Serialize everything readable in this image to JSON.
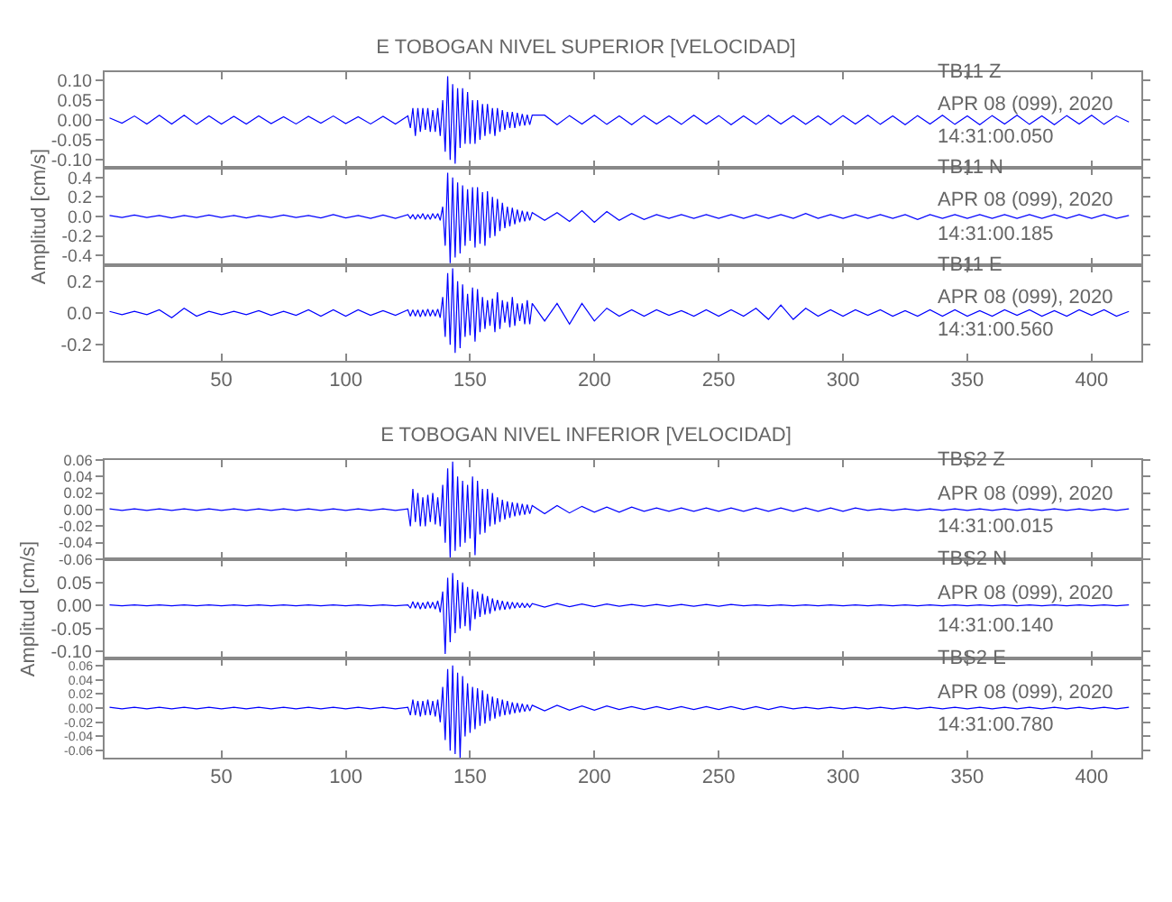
{
  "chart_data": [
    {
      "type": "line",
      "title": "E TOBOGAN NIVEL SUPERIOR [VELOCIDAD]",
      "tick_labels": "y",
      "xlim": [
        3,
        420
      ],
      "xticks": [
        50,
        100,
        150,
        200,
        250,
        300,
        350,
        400
      ],
      "ylim": [
        -0.12,
        0.12
      ],
      "yticks": [
        {
          "value": -0.1,
          "label": "-0.10"
        },
        {
          "value": -0.05,
          "label": "-0.05"
        },
        {
          "value": 0,
          "label": "0.00"
        },
        {
          "value": 0.05,
          "label": "0.05"
        },
        {
          "value": 0.1,
          "label": "0.10"
        }
      ],
      "annotations": [
        "TB11 Z",
        "APR 08 (099), 2020",
        "14:31:00.050"
      ],
      "x": [
        5,
        10,
        15,
        20,
        25,
        30,
        35,
        40,
        45,
        50,
        55,
        60,
        65,
        70,
        75,
        80,
        85,
        90,
        95,
        100,
        105,
        110,
        115,
        120,
        125,
        126,
        127,
        128,
        129,
        130,
        131,
        132,
        133,
        134,
        135,
        136,
        137,
        138,
        139,
        140,
        141,
        142,
        143,
        144,
        145,
        146,
        147,
        148,
        149,
        150,
        151,
        152,
        153,
        154,
        155,
        156,
        157,
        158,
        159,
        160,
        161,
        162,
        163,
        164,
        165,
        166,
        167,
        168,
        169,
        170,
        171,
        172,
        173,
        174,
        175,
        180,
        185,
        190,
        195,
        200,
        205,
        210,
        215,
        220,
        225,
        230,
        235,
        240,
        245,
        250,
        255,
        260,
        265,
        270,
        275,
        280,
        285,
        290,
        295,
        300,
        305,
        310,
        315,
        320,
        325,
        330,
        335,
        340,
        345,
        350,
        355,
        360,
        365,
        370,
        375,
        380,
        385,
        390,
        395,
        400,
        405,
        410,
        415
      ],
      "series": [
        {
          "color": "#0000ff",
          "values": [
            0.005,
            -0.008,
            0.01,
            -0.01,
            0.012,
            -0.01,
            0.012,
            -0.011,
            0.01,
            -0.01,
            0.009,
            -0.01,
            0.01,
            -0.009,
            0.008,
            -0.01,
            0.009,
            -0.008,
            0.01,
            -0.009,
            0.008,
            -0.01,
            0.009,
            -0.01,
            0.01,
            -0.02,
            0.03,
            -0.04,
            0.03,
            -0.03,
            0.03,
            -0.025,
            0.03,
            -0.03,
            0.025,
            -0.03,
            0.03,
            -0.04,
            0.05,
            -0.08,
            0.11,
            -0.1,
            0.09,
            -0.11,
            0.08,
            -0.07,
            0.08,
            -0.06,
            0.07,
            -0.06,
            0.05,
            -0.06,
            0.05,
            -0.05,
            0.04,
            -0.04,
            0.04,
            -0.035,
            0.03,
            -0.04,
            0.03,
            -0.03,
            0.025,
            -0.025,
            0.02,
            -0.02,
            0.02,
            -0.02,
            0.018,
            -0.015,
            0.015,
            -0.014,
            0.013,
            -0.012,
            0.012,
            0.012,
            -0.012,
            0.011,
            -0.01,
            0.012,
            -0.011,
            0.01,
            -0.012,
            0.011,
            -0.01,
            0.01,
            -0.011,
            0.012,
            -0.01,
            0.011,
            -0.012,
            0.01,
            -0.011,
            0.012,
            -0.01,
            0.011,
            -0.011,
            0.01,
            -0.012,
            0.011,
            -0.01,
            0.012,
            -0.011,
            0.01,
            -0.012,
            0.011,
            -0.01,
            0.012,
            -0.011,
            0.01,
            -0.012,
            0.011,
            -0.01,
            0.012,
            -0.011,
            0.01,
            -0.012,
            0.011,
            -0.01,
            0.012,
            -0.011,
            0.01,
            -0.005
          ]
        }
      ]
    },
    {
      "type": "line",
      "ylabel": "Amplitud [cm/s]",
      "tick_labels": "y",
      "xlim": [
        3,
        420
      ],
      "xticks": [
        50,
        100,
        150,
        200,
        250,
        300,
        350,
        400
      ],
      "ylim": [
        -0.5,
        0.5
      ],
      "yticks": [
        {
          "value": -0.4,
          "label": "-0.4"
        },
        {
          "value": -0.2,
          "label": "-0.2"
        },
        {
          "value": 0,
          "label": "0.0"
        },
        {
          "value": 0.2,
          "label": "0.2"
        },
        {
          "value": 0.4,
          "label": "0.4"
        }
      ],
      "annotations": [
        "TB11 N",
        "APR 08 (099), 2020",
        "14:31:00.185"
      ],
      "x": [
        5,
        10,
        15,
        20,
        25,
        30,
        35,
        40,
        45,
        50,
        55,
        60,
        65,
        70,
        75,
        80,
        85,
        90,
        95,
        100,
        105,
        110,
        115,
        120,
        125,
        126,
        127,
        128,
        129,
        130,
        131,
        132,
        133,
        134,
        135,
        136,
        137,
        138,
        139,
        140,
        141,
        142,
        143,
        144,
        145,
        146,
        147,
        148,
        149,
        150,
        151,
        152,
        153,
        154,
        155,
        156,
        157,
        158,
        159,
        160,
        161,
        162,
        163,
        164,
        165,
        166,
        167,
        168,
        169,
        170,
        171,
        172,
        173,
        174,
        175,
        180,
        185,
        190,
        195,
        200,
        205,
        210,
        215,
        220,
        225,
        230,
        235,
        240,
        245,
        250,
        255,
        260,
        265,
        270,
        275,
        280,
        285,
        290,
        295,
        300,
        305,
        310,
        315,
        320,
        325,
        330,
        335,
        340,
        345,
        350,
        355,
        360,
        365,
        370,
        375,
        380,
        385,
        390,
        395,
        400,
        405,
        410,
        415
      ],
      "series": [
        {
          "color": "#0000ff",
          "values": [
            0.01,
            -0.01,
            0.015,
            -0.01,
            0.01,
            -0.015,
            0.01,
            -0.01,
            0.015,
            -0.01,
            0.01,
            -0.015,
            0.01,
            -0.01,
            0.015,
            -0.01,
            0.01,
            -0.015,
            0.02,
            -0.015,
            0.01,
            -0.02,
            0.015,
            -0.02,
            0.02,
            -0.02,
            0.02,
            -0.03,
            0.02,
            -0.02,
            0.03,
            -0.03,
            0.02,
            -0.03,
            0.03,
            -0.02,
            0.03,
            -0.04,
            0.1,
            -0.3,
            0.45,
            -0.48,
            0.4,
            -0.42,
            0.35,
            -0.38,
            0.32,
            -0.3,
            0.28,
            -0.25,
            0.3,
            -0.32,
            0.3,
            -0.28,
            0.25,
            -0.3,
            0.26,
            -0.22,
            0.2,
            -0.2,
            0.18,
            -0.15,
            0.14,
            -0.12,
            0.1,
            -0.1,
            0.09,
            -0.08,
            0.07,
            -0.06,
            0.06,
            -0.05,
            0.05,
            -0.04,
            0.04,
            -0.04,
            0.04,
            -0.05,
            0.06,
            -0.06,
            0.05,
            -0.04,
            0.03,
            -0.03,
            0.02,
            -0.02,
            0.02,
            -0.02,
            0.02,
            -0.02,
            0.02,
            -0.02,
            0.02,
            -0.02,
            0.02,
            -0.02,
            0.03,
            -0.02,
            0.02,
            -0.02,
            0.02,
            -0.02,
            0.02,
            -0.02,
            0.02,
            -0.03,
            0.02,
            -0.02,
            0.02,
            -0.02,
            0.02,
            -0.02,
            0.02,
            -0.02,
            0.02,
            -0.02,
            0.02,
            -0.02,
            0.02,
            -0.02,
            0.02,
            -0.02,
            0.01
          ]
        }
      ]
    },
    {
      "type": "line",
      "xlim": [
        3,
        420
      ],
      "xticks": [
        50,
        100,
        150,
        200,
        250,
        300,
        350,
        400
      ],
      "ylim": [
        -0.3,
        0.3
      ],
      "yticks": [
        {
          "value": -0.2,
          "label": "-0.2"
        },
        {
          "value": 0,
          "label": "0.0"
        },
        {
          "value": 0.2,
          "label": "0.2"
        }
      ],
      "annotations": [
        "TB11 E",
        "APR 08 (099), 2020",
        "14:31:00.560"
      ],
      "x": [
        5,
        10,
        15,
        20,
        25,
        30,
        35,
        40,
        45,
        50,
        55,
        60,
        65,
        70,
        75,
        80,
        85,
        90,
        95,
        100,
        105,
        110,
        115,
        120,
        125,
        126,
        127,
        128,
        129,
        130,
        131,
        132,
        133,
        134,
        135,
        136,
        137,
        138,
        139,
        140,
        141,
        142,
        143,
        144,
        145,
        146,
        147,
        148,
        149,
        150,
        151,
        152,
        153,
        154,
        155,
        156,
        157,
        158,
        159,
        160,
        161,
        162,
        163,
        164,
        165,
        166,
        167,
        168,
        169,
        170,
        171,
        172,
        173,
        174,
        175,
        180,
        185,
        190,
        195,
        200,
        205,
        210,
        215,
        220,
        225,
        230,
        235,
        240,
        245,
        250,
        255,
        260,
        265,
        270,
        275,
        280,
        285,
        290,
        295,
        300,
        305,
        310,
        315,
        320,
        325,
        330,
        335,
        340,
        345,
        350,
        355,
        360,
        365,
        370,
        375,
        380,
        385,
        390,
        395,
        400,
        405,
        410,
        415
      ],
      "series": [
        {
          "color": "#0000ff",
          "values": [
            0.01,
            -0.01,
            0.01,
            -0.01,
            0.02,
            -0.03,
            0.03,
            -0.02,
            0.01,
            -0.01,
            0.01,
            -0.01,
            0.015,
            -0.015,
            0.01,
            -0.015,
            0.02,
            -0.02,
            0.02,
            -0.02,
            0.02,
            -0.015,
            0.015,
            -0.015,
            0.02,
            -0.02,
            0.02,
            -0.02,
            0.02,
            -0.025,
            0.02,
            -0.02,
            0.025,
            -0.02,
            0.02,
            -0.02,
            0.025,
            -0.03,
            0.1,
            -0.15,
            0.25,
            -0.2,
            0.28,
            -0.25,
            0.2,
            -0.22,
            0.18,
            -0.15,
            0.12,
            -0.14,
            0.16,
            -0.18,
            0.15,
            -0.12,
            0.1,
            -0.1,
            0.08,
            -0.08,
            0.09,
            -0.12,
            0.13,
            -0.1,
            0.08,
            -0.06,
            0.07,
            -0.09,
            0.1,
            -0.08,
            0.06,
            -0.05,
            0.06,
            -0.07,
            0.08,
            -0.07,
            0.06,
            -0.05,
            0.06,
            -0.07,
            0.06,
            -0.05,
            0.03,
            -0.02,
            0.02,
            -0.02,
            0.02,
            -0.015,
            0.015,
            -0.02,
            0.02,
            -0.02,
            0.02,
            -0.02,
            0.03,
            -0.04,
            0.05,
            -0.04,
            0.03,
            -0.02,
            0.02,
            -0.02,
            0.02,
            -0.015,
            0.02,
            -0.02,
            0.015,
            -0.02,
            0.02,
            -0.02,
            0.02,
            -0.02,
            0.015,
            -0.02,
            0.02,
            -0.015,
            0.02,
            -0.02,
            0.015,
            -0.02,
            0.02,
            -0.015,
            0.02,
            -0.02,
            0.01
          ]
        }
      ]
    },
    {
      "type": "line",
      "title": "E TOBOGAN NIVEL INFERIOR [VELOCIDAD]",
      "tick_labels": "y",
      "xlim": [
        3,
        420
      ],
      "xticks": [
        50,
        100,
        150,
        200,
        250,
        300,
        350,
        400
      ],
      "ylim": [
        -0.06,
        0.06
      ],
      "yticks": [
        {
          "value": -0.06,
          "label": "-0.06"
        },
        {
          "value": -0.04,
          "label": "-0.04"
        },
        {
          "value": -0.02,
          "label": "-0.02"
        },
        {
          "value": 0,
          "label": "0.00"
        },
        {
          "value": 0.02,
          "label": "0.02"
        },
        {
          "value": 0.04,
          "label": "0.04"
        },
        {
          "value": 0.06,
          "label": "0.06"
        }
      ],
      "annotations": [
        "TBS2 Z",
        "APR 08 (099), 2020",
        "14:31:00.015"
      ],
      "x": [
        5,
        10,
        15,
        20,
        25,
        30,
        35,
        40,
        45,
        50,
        55,
        60,
        65,
        70,
        75,
        80,
        85,
        90,
        95,
        100,
        105,
        110,
        115,
        120,
        125,
        126,
        127,
        128,
        129,
        130,
        131,
        132,
        133,
        134,
        135,
        136,
        137,
        138,
        139,
        140,
        141,
        142,
        143,
        144,
        145,
        146,
        147,
        148,
        149,
        150,
        151,
        152,
        153,
        154,
        155,
        156,
        157,
        158,
        159,
        160,
        161,
        162,
        163,
        164,
        165,
        166,
        167,
        168,
        169,
        170,
        171,
        172,
        173,
        174,
        175,
        180,
        185,
        190,
        195,
        200,
        205,
        210,
        215,
        220,
        225,
        230,
        235,
        240,
        245,
        250,
        255,
        260,
        265,
        270,
        275,
        280,
        285,
        290,
        295,
        300,
        305,
        310,
        315,
        320,
        325,
        330,
        335,
        340,
        345,
        350,
        355,
        360,
        365,
        370,
        375,
        380,
        385,
        390,
        395,
        400,
        405,
        410,
        415
      ],
      "series": [
        {
          "color": "#0000ff",
          "values": [
            0.001,
            -0.001,
            0.001,
            -0.001,
            0.001,
            -0.001,
            0.001,
            -0.001,
            0.001,
            -0.001,
            0.001,
            -0.001,
            0.001,
            -0.001,
            0.001,
            -0.001,
            0.001,
            -0.001,
            0.001,
            -0.001,
            0.001,
            -0.001,
            0.001,
            -0.001,
            0.001,
            -0.02,
            0.025,
            -0.015,
            0.02,
            -0.02,
            0.015,
            -0.02,
            0.018,
            -0.015,
            0.02,
            -0.018,
            0.015,
            -0.02,
            0.03,
            -0.04,
            0.05,
            -0.058,
            0.058,
            -0.05,
            0.04,
            -0.045,
            0.035,
            -0.04,
            0.03,
            -0.035,
            0.04,
            -0.055,
            0.035,
            -0.03,
            0.025,
            -0.028,
            0.025,
            -0.02,
            0.02,
            -0.018,
            0.015,
            -0.015,
            0.012,
            -0.012,
            0.01,
            -0.01,
            0.009,
            -0.008,
            0.008,
            -0.007,
            0.007,
            -0.006,
            0.006,
            -0.005,
            0.005,
            -0.005,
            0.005,
            -0.004,
            0.004,
            -0.003,
            0.003,
            -0.003,
            0.003,
            -0.002,
            0.002,
            -0.002,
            0.002,
            -0.002,
            0.002,
            -0.002,
            0.002,
            -0.002,
            0.002,
            -0.002,
            0.002,
            -0.002,
            0.002,
            -0.002,
            0.002,
            -0.002,
            0.002,
            -0.001,
            0.001,
            -0.001,
            0.001,
            -0.001,
            0.001,
            -0.001,
            0.001,
            -0.001,
            0.001,
            -0.001,
            0.001,
            -0.001,
            0.001,
            -0.001,
            0.001,
            -0.001,
            0.001,
            -0.001,
            0.001,
            -0.001,
            0.001
          ]
        }
      ]
    },
    {
      "type": "line",
      "ylabel": "Amplitud [cm/s]",
      "tick_labels": "y",
      "xlim": [
        3,
        420
      ],
      "xticks": [
        50,
        100,
        150,
        200,
        250,
        300,
        350,
        400
      ],
      "ylim": [
        -0.115,
        0.1
      ],
      "yticks": [
        {
          "value": -0.1,
          "label": "-0.10"
        },
        {
          "value": -0.05,
          "label": "-0.05"
        },
        {
          "value": 0,
          "label": "0.00"
        },
        {
          "value": 0.05,
          "label": "0.05"
        }
      ],
      "annotations": [
        "TBS2 N",
        "APR 08 (099), 2020",
        "14:31:00.140"
      ],
      "x": [
        5,
        10,
        15,
        20,
        25,
        30,
        35,
        40,
        45,
        50,
        55,
        60,
        65,
        70,
        75,
        80,
        85,
        90,
        95,
        100,
        105,
        110,
        115,
        120,
        125,
        126,
        127,
        128,
        129,
        130,
        131,
        132,
        133,
        134,
        135,
        136,
        137,
        138,
        139,
        140,
        141,
        142,
        143,
        144,
        145,
        146,
        147,
        148,
        149,
        150,
        151,
        152,
        153,
        154,
        155,
        156,
        157,
        158,
        159,
        160,
        161,
        162,
        163,
        164,
        165,
        166,
        167,
        168,
        169,
        170,
        171,
        172,
        173,
        174,
        175,
        180,
        185,
        190,
        195,
        200,
        205,
        210,
        215,
        220,
        225,
        230,
        235,
        240,
        245,
        250,
        255,
        260,
        265,
        270,
        275,
        280,
        285,
        290,
        295,
        300,
        305,
        310,
        315,
        320,
        325,
        330,
        335,
        340,
        345,
        350,
        355,
        360,
        365,
        370,
        375,
        380,
        385,
        390,
        395,
        400,
        405,
        410,
        415
      ],
      "series": [
        {
          "color": "#0000ff",
          "values": [
            0.001,
            -0.001,
            0.001,
            -0.001,
            0.001,
            -0.001,
            0.001,
            -0.001,
            0.001,
            -0.001,
            0.001,
            -0.001,
            0.001,
            -0.001,
            0.001,
            -0.001,
            0.001,
            -0.001,
            0.001,
            -0.001,
            0.001,
            -0.001,
            0.001,
            -0.001,
            0.001,
            -0.006,
            0.008,
            -0.006,
            0.007,
            -0.008,
            0.006,
            -0.007,
            0.008,
            -0.006,
            0.007,
            -0.008,
            0.01,
            -0.015,
            0.03,
            -0.105,
            0.06,
            -0.08,
            0.07,
            -0.06,
            0.055,
            -0.05,
            0.05,
            -0.045,
            0.04,
            -0.055,
            0.035,
            -0.03,
            0.03,
            -0.025,
            0.025,
            -0.02,
            0.02,
            -0.018,
            0.015,
            -0.012,
            0.012,
            -0.01,
            0.01,
            -0.009,
            0.008,
            -0.008,
            0.007,
            -0.006,
            0.006,
            -0.005,
            0.005,
            -0.005,
            0.004,
            -0.004,
            0.004,
            -0.004,
            0.004,
            -0.003,
            0.003,
            -0.003,
            0.003,
            -0.002,
            0.002,
            -0.002,
            0.002,
            -0.002,
            0.002,
            -0.002,
            0.002,
            -0.002,
            0.002,
            -0.001,
            0.001,
            -0.001,
            0.001,
            -0.001,
            0.001,
            -0.001,
            0.001,
            -0.001,
            0.001,
            -0.001,
            0.001,
            -0.001,
            0.001,
            -0.001,
            0.001,
            -0.001,
            0.001,
            -0.001,
            0.001,
            -0.001,
            0.001,
            -0.001,
            0.001,
            -0.001,
            0.001,
            -0.001,
            0.001,
            -0.001,
            0.001,
            -0.001,
            0.001
          ]
        }
      ]
    },
    {
      "type": "line",
      "xlim": [
        3,
        420
      ],
      "xticks": [
        50,
        100,
        150,
        200,
        250,
        300,
        350,
        400
      ],
      "ylim": [
        -0.07,
        0.07
      ],
      "yticks": [
        {
          "value": -0.06,
          "label": "-0.06"
        },
        {
          "value": -0.04,
          "label": "-0.04"
        },
        {
          "value": -0.02,
          "label": "-0.02"
        },
        {
          "value": 0,
          "label": "0.00"
        },
        {
          "value": 0.02,
          "label": "0.02"
        },
        {
          "value": 0.04,
          "label": "0.04"
        },
        {
          "value": 0.06,
          "label": "0.06"
        }
      ],
      "annotations": [
        "TBS2 E",
        "APR 08 (099), 2020",
        "14:31:00.780"
      ],
      "x": [
        5,
        10,
        15,
        20,
        25,
        30,
        35,
        40,
        45,
        50,
        55,
        60,
        65,
        70,
        75,
        80,
        85,
        90,
        95,
        100,
        105,
        110,
        115,
        120,
        125,
        126,
        127,
        128,
        129,
        130,
        131,
        132,
        133,
        134,
        135,
        136,
        137,
        138,
        139,
        140,
        141,
        142,
        143,
        144,
        145,
        146,
        147,
        148,
        149,
        150,
        151,
        152,
        153,
        154,
        155,
        156,
        157,
        158,
        159,
        160,
        161,
        162,
        163,
        164,
        165,
        166,
        167,
        168,
        169,
        170,
        171,
        172,
        173,
        174,
        175,
        180,
        185,
        190,
        195,
        200,
        205,
        210,
        215,
        220,
        225,
        230,
        235,
        240,
        245,
        250,
        255,
        260,
        265,
        270,
        275,
        280,
        285,
        290,
        295,
        300,
        305,
        310,
        315,
        320,
        325,
        330,
        335,
        340,
        345,
        350,
        355,
        360,
        365,
        370,
        375,
        380,
        385,
        390,
        395,
        400,
        405,
        410,
        415
      ],
      "series": [
        {
          "color": "#0000ff",
          "values": [
            0.001,
            -0.001,
            0.001,
            -0.001,
            0.001,
            -0.001,
            0.001,
            -0.001,
            0.001,
            -0.001,
            0.001,
            -0.001,
            0.001,
            -0.001,
            0.001,
            -0.001,
            0.001,
            -0.001,
            0.001,
            -0.001,
            0.001,
            -0.001,
            0.001,
            -0.001,
            0.001,
            -0.01,
            0.012,
            -0.01,
            0.01,
            -0.012,
            0.01,
            -0.01,
            0.012,
            -0.01,
            0.01,
            -0.012,
            0.012,
            -0.02,
            0.03,
            -0.045,
            0.055,
            -0.06,
            0.06,
            -0.065,
            0.05,
            -0.07,
            0.045,
            -0.04,
            0.035,
            -0.035,
            0.03,
            -0.03,
            0.028,
            -0.025,
            0.025,
            -0.022,
            0.02,
            -0.018,
            0.016,
            -0.015,
            0.014,
            -0.012,
            0.012,
            -0.01,
            0.01,
            -0.009,
            0.008,
            -0.007,
            0.007,
            -0.006,
            0.006,
            -0.005,
            0.005,
            -0.004,
            0.004,
            -0.004,
            0.004,
            -0.003,
            0.003,
            -0.003,
            0.003,
            -0.002,
            0.002,
            -0.002,
            0.002,
            -0.002,
            0.002,
            -0.002,
            0.002,
            -0.002,
            0.002,
            -0.002,
            0.002,
            -0.002,
            0.002,
            -0.001,
            0.001,
            -0.001,
            0.001,
            -0.001,
            0.001,
            -0.001,
            0.001,
            -0.001,
            0.001,
            -0.001,
            0.001,
            -0.001,
            0.001,
            -0.001,
            0.001,
            -0.001,
            0.001,
            -0.001,
            0.001,
            -0.001,
            0.001,
            -0.001,
            0.001,
            -0.001,
            0.001,
            -0.001,
            0.001
          ]
        }
      ]
    }
  ]
}
